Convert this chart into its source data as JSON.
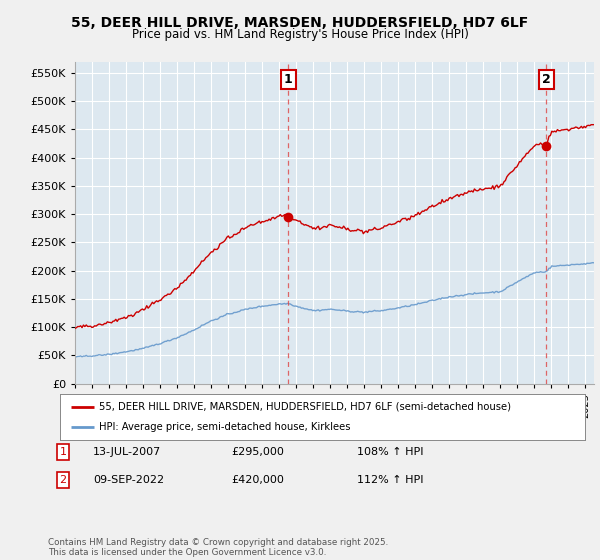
{
  "title_line1": "55, DEER HILL DRIVE, MARSDEN, HUDDERSFIELD, HD7 6LF",
  "title_line2": "Price paid vs. HM Land Registry's House Price Index (HPI)",
  "background_color": "#f0f0f0",
  "plot_bg_color": "#dde8f0",
  "red_color": "#cc0000",
  "blue_color": "#6699cc",
  "dashed_color": "#dd4444",
  "ylim": [
    0,
    570000
  ],
  "yticks": [
    0,
    50000,
    100000,
    150000,
    200000,
    250000,
    300000,
    350000,
    400000,
    450000,
    500000,
    550000
  ],
  "ytick_labels": [
    "£0",
    "£50K",
    "£100K",
    "£150K",
    "£200K",
    "£250K",
    "£300K",
    "£350K",
    "£400K",
    "£450K",
    "£500K",
    "£550K"
  ],
  "legend_red_label": "55, DEER HILL DRIVE, MARSDEN, HUDDERSFIELD, HD7 6LF (semi-detached house)",
  "legend_blue_label": "HPI: Average price, semi-detached house, Kirklees",
  "annotation1_box": "1",
  "annotation1_date": "13-JUL-2007",
  "annotation1_price": "£295,000",
  "annotation1_hpi": "108% ↑ HPI",
  "annotation2_box": "2",
  "annotation2_date": "09-SEP-2022",
  "annotation2_price": "£420,000",
  "annotation2_hpi": "112% ↑ HPI",
  "footer": "Contains HM Land Registry data © Crown copyright and database right 2025.\nThis data is licensed under the Open Government Licence v3.0.",
  "sale1_year": 2007.54,
  "sale1_price": 295000,
  "sale2_year": 2022.69,
  "sale2_price": 420000,
  "xmin": 1995,
  "xmax": 2025.5
}
